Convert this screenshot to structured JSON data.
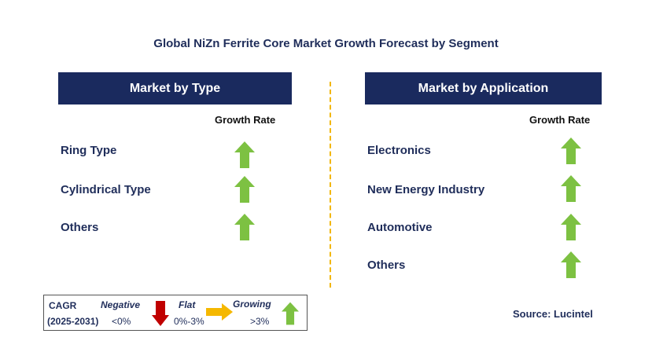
{
  "title": "Global NiZn Ferrite Core Market Growth Forecast by Segment",
  "left_panel": {
    "header": "Market by Type",
    "growth_label": "Growth Rate",
    "rows": [
      {
        "label": "Ring Type",
        "trend": "growing"
      },
      {
        "label": "Cylindrical Type",
        "trend": "growing"
      },
      {
        "label": "Others",
        "trend": "growing"
      }
    ]
  },
  "right_panel": {
    "header": "Market by Application",
    "growth_label": "Growth Rate",
    "rows": [
      {
        "label": "Electronics",
        "trend": "growing"
      },
      {
        "label": "New Energy Industry",
        "trend": "growing"
      },
      {
        "label": "Automotive",
        "trend": "growing"
      },
      {
        "label": "Others",
        "trend": "growing"
      }
    ]
  },
  "legend": {
    "cagr_label": "CAGR",
    "period": "(2025-2031)",
    "negative_label": "Negative",
    "negative_range": "<0%",
    "flat_label": "Flat",
    "flat_range": "0%-3%",
    "growing_label": "Growing",
    "growing_range": ">3%"
  },
  "source": "Source: Lucintel",
  "colors": {
    "header_bg": "#1a2a5e",
    "growing": "#7dc142",
    "negative": "#c00000",
    "flat": "#f5b800",
    "divider": "#f2b600"
  }
}
